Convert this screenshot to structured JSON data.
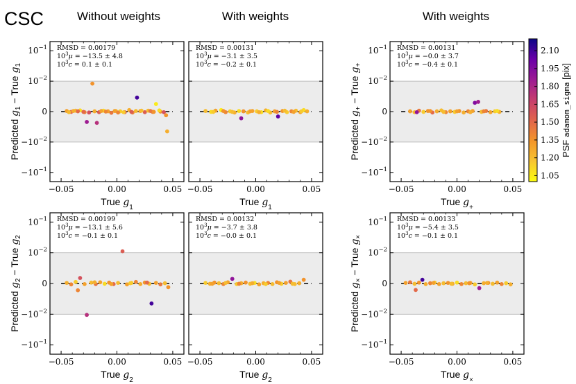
{
  "figure": {
    "label": "CSC",
    "column_titles": [
      "Without weights",
      "With weights",
      "With weights"
    ]
  },
  "colorbar": {
    "label_prefix": "PSF ",
    "label_mono": "adamom_sigma",
    "label_suffix": " [pix]",
    "range": [
      1.0,
      2.2
    ],
    "ticks": [
      "1.05",
      "1.20",
      "1.35",
      "1.50",
      "1.65",
      "1.80",
      "1.95",
      "2.10"
    ],
    "colormap": [
      "#fcfd0f",
      "#f7c431",
      "#f3952a",
      "#e1654c",
      "#c63e6e",
      "#9c1b94",
      "#6a00a8",
      "#0d0887"
    ]
  },
  "axis": {
    "xticks": [
      "−0.05",
      "0.00",
      "0.05"
    ],
    "yticks": [
      "10",
      "10",
      "0",
      "−10",
      "−10"
    ],
    "ytick_exps": [
      "−1",
      "−2",
      "",
      "−2",
      "−1"
    ],
    "band_color": "#ececec"
  },
  "chart_data": [
    {
      "type": "scatter",
      "panel": "row1-col1",
      "xlabel": "True g1",
      "ylabel": "Predicted g1 − True g1",
      "xlim": [
        -0.06,
        0.06
      ],
      "yscale": "symlog",
      "ylim": [
        -0.2,
        0.2
      ],
      "stats": {
        "rmsd": "0.00179",
        "mu": "−13.5 ± 4.8",
        "c": "0.1 ± 0.1"
      },
      "x": [
        -0.045,
        -0.041,
        -0.037,
        -0.033,
        -0.029,
        -0.025,
        -0.022,
        -0.02,
        -0.016,
        -0.012,
        -0.008,
        -0.005,
        -0.001,
        0.003,
        0.007,
        0.011,
        0.014,
        0.018,
        0.021,
        0.025,
        0.028,
        0.032,
        0.035,
        0.039,
        0.042,
        0.045,
        -0.043,
        -0.035,
        -0.027,
        -0.018,
        -0.01,
        -0.002,
        0.006,
        0.013,
        0.022,
        0.03,
        0.038,
        0.044,
        -0.039,
        -0.03,
        -0.014,
        0.001,
        0.017,
        0.033
      ],
      "y": [
        0.0002,
        -0.0001,
        0.0003,
        0.0004,
        -0.0002,
        -0.0003,
        0.0092,
        0.0001,
        -0.0002,
        0.0003,
        0.0001,
        -0.0004,
        0.0002,
        0.0001,
        -0.0002,
        0.0005,
        -0.0003,
        0.0046,
        0.0002,
        -0.0002,
        0.0003,
        -0.0001,
        0.0025,
        0.0,
        -0.0002,
        -0.0065,
        -0.0002,
        0.0001,
        -0.0034,
        -0.0037,
        0.0,
        0.0002,
        -0.0002,
        -0.0001,
        0.0003,
        0.0002,
        0.0004,
        -0.0012,
        0.0002,
        -0.0001,
        0.0002,
        -0.0003,
        0.0002,
        -0.0001
      ],
      "c": [
        1.3,
        1.5,
        1.2,
        1.1,
        1.4,
        1.6,
        1.35,
        1.25,
        1.55,
        1.1,
        1.3,
        1.45,
        1.2,
        1.15,
        1.5,
        1.25,
        1.4,
        2.1,
        1.3,
        1.55,
        1.2,
        1.45,
        1.05,
        1.35,
        1.6,
        1.25,
        1.2,
        1.5,
        1.85,
        1.75,
        1.4,
        1.3,
        1.15,
        1.55,
        1.2,
        1.45,
        1.1,
        1.35,
        1.25,
        1.5,
        1.3,
        1.4,
        1.2,
        1.35
      ]
    },
    {
      "type": "scatter",
      "panel": "row1-col2",
      "xlabel": "True g1",
      "ylabel": "",
      "xlim": [
        -0.06,
        0.06
      ],
      "yscale": "symlog",
      "ylim": [
        -0.2,
        0.2
      ],
      "stats": {
        "rmsd": "0.00131",
        "mu": "−3.1 ± 3.5",
        "c": "−0.2 ± 0.1"
      },
      "x": [
        -0.045,
        -0.04,
        -0.036,
        -0.031,
        -0.027,
        -0.023,
        -0.019,
        -0.015,
        -0.011,
        -0.007,
        -0.003,
        0.001,
        0.005,
        0.009,
        0.013,
        0.017,
        0.02,
        0.024,
        0.028,
        0.032,
        0.036,
        0.04,
        0.043,
        0.046,
        -0.038,
        -0.029,
        -0.021,
        -0.013,
        -0.005,
        0.003,
        0.011,
        0.019,
        0.026,
        0.034,
        0.041
      ],
      "y": [
        0.0002,
        -0.0001,
        0.0003,
        0.0005,
        -0.0002,
        0.0001,
        -0.0003,
        0.0002,
        0.0001,
        -0.0003,
        0.0002,
        0.0001,
        -0.0002,
        0.0004,
        -0.0003,
        0.0001,
        -0.0016,
        0.0002,
        -0.0002,
        0.0001,
        0.0003,
        -0.0002,
        0.0005,
        0.0001,
        -0.0001,
        0.0002,
        -0.0001,
        -0.0022,
        0.0001,
        -0.0002,
        0.0002,
        -0.0001,
        0.0003,
        -0.0001,
        0.0001
      ],
      "c": [
        1.2,
        1.1,
        1.3,
        1.05,
        1.4,
        1.15,
        1.25,
        1.1,
        1.35,
        1.2,
        1.3,
        1.15,
        1.1,
        1.25,
        1.2,
        1.3,
        2.05,
        1.35,
        1.15,
        1.4,
        1.2,
        1.3,
        1.1,
        1.25,
        1.15,
        1.35,
        1.2,
        1.9,
        1.3,
        1.25,
        1.1,
        1.4,
        1.2,
        1.3,
        1.15
      ]
    },
    {
      "type": "scatter",
      "panel": "row1-col3",
      "xlabel": "True g+",
      "ylabel": "Predicted g+ − True g+",
      "xlim": [
        -0.06,
        0.06
      ],
      "yscale": "symlog",
      "ylim": [
        -0.2,
        0.2
      ],
      "stats": {
        "rmsd": "0.00131",
        "mu": "−0.0 ± 3.7",
        "c": "−0.4 ± 0.1"
      },
      "x": [
        -0.042,
        -0.038,
        -0.034,
        -0.03,
        -0.026,
        -0.022,
        -0.018,
        -0.014,
        -0.01,
        -0.006,
        -0.002,
        0.002,
        0.006,
        0.01,
        0.014,
        0.016,
        0.019,
        0.022,
        0.026,
        0.03,
        0.034,
        0.038,
        -0.036,
        -0.024,
        -0.012,
        0.0,
        0.012,
        0.024,
        0.036
      ],
      "y": [
        0.0001,
        -0.0002,
        0.0003,
        -0.0001,
        0.0002,
        -0.0003,
        0.0001,
        0.0004,
        -0.0002,
        0.0001,
        -0.0001,
        0.0002,
        -0.0003,
        0.0001,
        0.0002,
        0.0029,
        0.0032,
        -0.0001,
        0.0002,
        -0.0002,
        0.0001,
        -0.0001,
        -0.0002,
        0.0002,
        -0.0001,
        0.0001,
        -0.0002,
        0.0001,
        0.0002
      ],
      "c": [
        1.3,
        1.2,
        1.45,
        1.15,
        1.35,
        1.5,
        1.25,
        1.2,
        1.4,
        1.3,
        1.15,
        1.35,
        1.25,
        1.4,
        1.3,
        1.95,
        1.85,
        1.2,
        1.45,
        1.3,
        1.15,
        1.25,
        1.9,
        1.35,
        1.2,
        1.3,
        1.25,
        1.4,
        1.1
      ]
    },
    {
      "type": "scatter",
      "panel": "row2-col1",
      "xlabel": "True g2",
      "ylabel": "Predicted g2 − True g2",
      "xlim": [
        -0.06,
        0.06
      ],
      "yscale": "symlog",
      "ylim": [
        -0.2,
        0.2
      ],
      "stats": {
        "rmsd": "0.00199",
        "mu": "−13.1 ± 5.6",
        "c": "−0.1 ± 0.1"
      },
      "x": [
        -0.045,
        -0.041,
        -0.037,
        -0.033,
        -0.029,
        -0.027,
        -0.023,
        -0.019,
        -0.015,
        -0.011,
        -0.007,
        -0.003,
        0.001,
        0.005,
        0.009,
        0.013,
        0.017,
        0.021,
        0.025,
        0.029,
        0.031,
        0.035,
        0.039,
        0.043,
        0.046,
        -0.035,
        -0.02,
        -0.005,
        0.012,
        0.027
      ],
      "y": [
        0.0002,
        -0.0003,
        0.0005,
        0.0018,
        -0.0002,
        -0.0105,
        0.0003,
        -0.0002,
        0.0004,
        -0.0001,
        0.0003,
        -0.0002,
        0.0002,
        0.0112,
        -0.0003,
        0.0002,
        0.0005,
        -0.0002,
        0.0003,
        -0.0001,
        -0.0065,
        0.0002,
        -0.0003,
        0.0001,
        -0.0012,
        -0.0022,
        0.0004,
        -0.0002,
        0.0001,
        0.0003
      ],
      "c": [
        1.25,
        1.4,
        1.15,
        1.6,
        1.3,
        1.75,
        1.2,
        1.45,
        1.3,
        1.1,
        1.35,
        1.5,
        1.2,
        1.55,
        1.3,
        1.15,
        1.4,
        1.25,
        1.35,
        1.2,
        2.1,
        1.3,
        1.45,
        1.2,
        1.35,
        1.4,
        1.25,
        1.3,
        1.15,
        1.5
      ]
    },
    {
      "type": "scatter",
      "panel": "row2-col2",
      "xlabel": "True g2",
      "ylabel": "",
      "xlim": [
        -0.06,
        0.06
      ],
      "yscale": "symlog",
      "ylim": [
        -0.2,
        0.2
      ],
      "stats": {
        "rmsd": "0.00132",
        "mu": "−3.7 ± 3.8",
        "c": "−0.0 ± 0.1"
      },
      "x": [
        -0.045,
        -0.041,
        -0.037,
        -0.033,
        -0.029,
        -0.025,
        -0.021,
        -0.017,
        -0.013,
        -0.009,
        -0.005,
        -0.001,
        0.003,
        0.007,
        0.011,
        0.015,
        0.019,
        0.023,
        0.027,
        0.031,
        0.035,
        0.039,
        0.043,
        -0.039,
        -0.027,
        -0.015,
        -0.003,
        0.009,
        0.021,
        0.033
      ],
      "y": [
        0.0002,
        -0.0001,
        0.0003,
        0.0001,
        -0.0002,
        0.0004,
        0.0015,
        -0.0002,
        0.0001,
        0.0003,
        -0.0001,
        0.0002,
        -0.0003,
        0.0001,
        0.0002,
        -0.0002,
        0.0004,
        -0.0001,
        0.0002,
        0.0006,
        -0.0002,
        0.0001,
        0.0012,
        -0.0001,
        0.0002,
        -0.0001,
        0.0001,
        -0.0002,
        0.0002,
        -0.0001
      ],
      "c": [
        1.15,
        1.25,
        1.35,
        1.2,
        1.4,
        1.3,
        1.9,
        1.15,
        1.25,
        1.35,
        1.2,
        1.1,
        1.3,
        1.25,
        1.4,
        1.2,
        1.35,
        1.15,
        1.3,
        1.45,
        1.2,
        1.25,
        1.35,
        1.3,
        1.2,
        1.4,
        1.25,
        1.15,
        1.3,
        1.2
      ]
    },
    {
      "type": "scatter",
      "panel": "row2-col3",
      "xlabel": "True g×",
      "ylabel": "Predicted g× − True g×",
      "xlim": [
        -0.06,
        0.06
      ],
      "yscale": "symlog",
      "ylim": [
        -0.2,
        0.2
      ],
      "stats": {
        "rmsd": "0.00133",
        "mu": "−5.4 ± 3.5",
        "c": "−0.1 ± 0.1"
      },
      "x": [
        -0.046,
        -0.042,
        -0.038,
        -0.034,
        -0.031,
        -0.028,
        -0.024,
        -0.02,
        -0.016,
        -0.012,
        -0.008,
        -0.004,
        0.0,
        0.004,
        0.008,
        0.012,
        0.016,
        0.02,
        0.024,
        0.028,
        0.032,
        0.036,
        0.04,
        0.044,
        0.048,
        -0.037,
        -0.021,
        -0.005,
        0.011,
        0.027
      ],
      "y": [
        0.0002,
        0.0004,
        -0.0001,
        0.0003,
        0.0012,
        -0.0002,
        0.0001,
        0.0003,
        -0.0002,
        0.0001,
        0.0002,
        -0.0001,
        0.0003,
        -0.0002,
        0.0001,
        0.0002,
        -0.0003,
        -0.0015,
        0.0001,
        0.0002,
        -0.0001,
        0.0003,
        -0.0002,
        0.0001,
        -0.0003,
        -0.0021,
        0.0002,
        -0.0001,
        0.0001,
        0.0002
      ],
      "c": [
        1.3,
        1.45,
        1.2,
        1.35,
        2.1,
        1.25,
        1.4,
        1.15,
        1.3,
        1.2,
        1.35,
        1.25,
        1.1,
        1.4,
        1.2,
        1.3,
        1.15,
        1.85,
        1.25,
        1.35,
        1.2,
        1.3,
        1.4,
        1.15,
        1.25,
        1.5,
        1.3,
        1.2,
        1.35,
        1.25
      ]
    }
  ]
}
